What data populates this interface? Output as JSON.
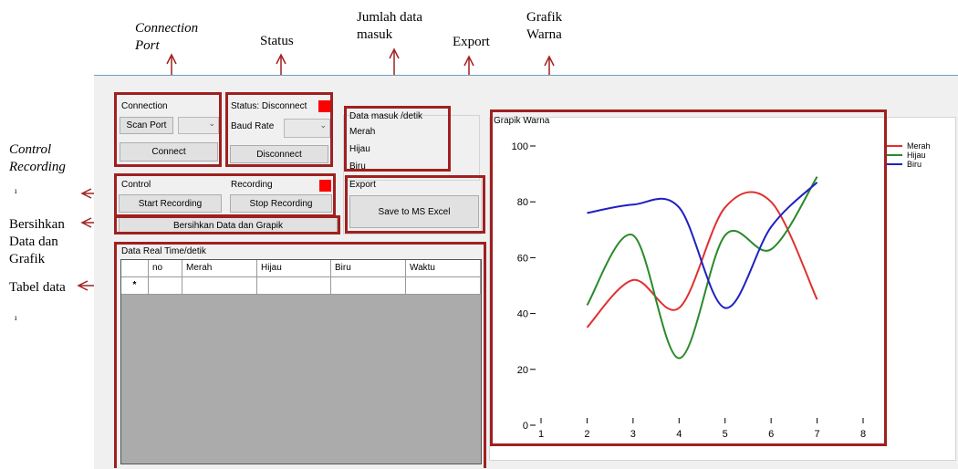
{
  "annotations": {
    "connection_port": [
      "Connection",
      "Port"
    ],
    "status": "Status",
    "jumlah_data": [
      "Jumlah data",
      "masuk"
    ],
    "export": "Export",
    "grafik_warna": [
      "Grafik",
      "Warna"
    ],
    "control_recording": [
      "Control",
      "Recording"
    ],
    "bersihkan": [
      "Bersihkan",
      "Data dan",
      "Grafik"
    ],
    "tabel_data": "Tabel data",
    "tick_marks": [
      "ı",
      "ı"
    ]
  },
  "connection": {
    "group_label": "Connection",
    "scan_button": "Scan Port",
    "connect_button": "Connect"
  },
  "status": {
    "group_label": "Status: Disconnect",
    "baud_label": "Baud Rate",
    "disconnect_button": "Disconnect",
    "led_color": "#ff0000"
  },
  "incoming": {
    "group_label": "Data masuk /detik",
    "merah": "Merah",
    "hijau": "Hijau",
    "biru": "Biru"
  },
  "control": {
    "control_label": "Control",
    "recording_label": "Recording",
    "start_button": "Start Recording",
    "stop_button": "Stop Recording",
    "clear_button": "Bersihkan Data dan Grapik"
  },
  "export": {
    "group_label": "Export",
    "excel_button": "Save to MS Excel"
  },
  "table": {
    "group_label": "Data Real Time/detik",
    "columns": [
      "",
      "no",
      "Merah",
      "Hijau",
      "Biru",
      "Waktu"
    ],
    "new_row_marker": "*"
  },
  "chart_data": {
    "type": "line",
    "title": "Grapik Warna",
    "xlim": [
      1,
      8
    ],
    "ylim": [
      0,
      100
    ],
    "x_ticks": [
      1,
      2,
      3,
      4,
      5,
      6,
      7,
      8
    ],
    "y_ticks": [
      0,
      20,
      40,
      60,
      80,
      100
    ],
    "legend_position": "top-right",
    "series": [
      {
        "name": "Merah",
        "color": "#e03030",
        "x": [
          2,
          3,
          4,
          5,
          6,
          7
        ],
        "y": [
          35,
          52,
          42,
          78,
          80,
          45
        ]
      },
      {
        "name": "Hijau",
        "color": "#2a8a2a",
        "x": [
          2,
          3,
          4,
          5,
          6,
          7
        ],
        "y": [
          43,
          68,
          24,
          68,
          63,
          89
        ]
      },
      {
        "name": "Biru",
        "color": "#2020c0",
        "x": [
          2,
          3,
          4,
          5,
          6,
          7
        ],
        "y": [
          76,
          79,
          78,
          42,
          71,
          87
        ]
      }
    ]
  }
}
